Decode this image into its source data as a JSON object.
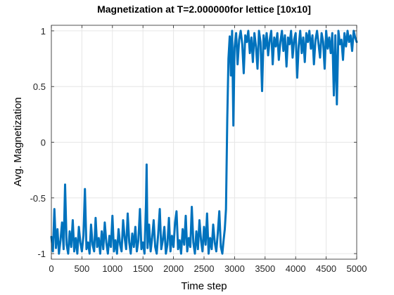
{
  "chart_data": {
    "type": "line",
    "title": "Magnetization at T=2.000000for lettice [10x10]",
    "xlabel": "Time step",
    "ylabel": "Avg. Magnetization",
    "xlim": [
      0,
      5000
    ],
    "ylim": [
      -1.05,
      1.05
    ],
    "xticks": [
      0,
      500,
      1000,
      1500,
      2000,
      2500,
      3000,
      3500,
      4000,
      4500,
      5000
    ],
    "xtick_labels": [
      "0",
      "500",
      "1000",
      "1500",
      "2000",
      "2500",
      "3000",
      "3500",
      "4000",
      "4500",
      "5000"
    ],
    "yticks": [
      -1,
      -0.5,
      0,
      0.5,
      1
    ],
    "ytick_labels": [
      "-1",
      "-0.5",
      "0",
      "0.5",
      "1"
    ],
    "grid": true,
    "series": [
      {
        "name": "Avg. Magnetization",
        "color": "#0072BD",
        "x": [
          0,
          25,
          50,
          75,
          100,
          125,
          150,
          175,
          200,
          225,
          250,
          275,
          300,
          325,
          350,
          375,
          400,
          425,
          450,
          475,
          500,
          525,
          550,
          575,
          600,
          625,
          650,
          675,
          700,
          725,
          750,
          775,
          800,
          825,
          850,
          875,
          900,
          925,
          950,
          975,
          1000,
          1025,
          1050,
          1075,
          1100,
          1125,
          1150,
          1175,
          1200,
          1225,
          1250,
          1275,
          1300,
          1325,
          1350,
          1375,
          1400,
          1425,
          1450,
          1475,
          1500,
          1525,
          1550,
          1560,
          1575,
          1600,
          1625,
          1650,
          1675,
          1700,
          1725,
          1750,
          1775,
          1800,
          1825,
          1850,
          1875,
          1900,
          1925,
          1950,
          1975,
          2000,
          2025,
          2050,
          2075,
          2100,
          2125,
          2150,
          2175,
          2200,
          2225,
          2250,
          2275,
          2300,
          2325,
          2350,
          2375,
          2400,
          2425,
          2450,
          2475,
          2500,
          2525,
          2550,
          2575,
          2600,
          2625,
          2650,
          2675,
          2700,
          2725,
          2750,
          2775,
          2800,
          2820,
          2840,
          2860,
          2880,
          2900,
          2920,
          2940,
          2960,
          2980,
          3000,
          3025,
          3050,
          3075,
          3100,
          3125,
          3150,
          3175,
          3200,
          3225,
          3250,
          3275,
          3300,
          3325,
          3350,
          3375,
          3400,
          3425,
          3450,
          3475,
          3500,
          3525,
          3550,
          3575,
          3600,
          3625,
          3650,
          3675,
          3700,
          3725,
          3750,
          3775,
          3800,
          3825,
          3850,
          3875,
          3900,
          3925,
          3950,
          3975,
          4000,
          4025,
          4050,
          4075,
          4100,
          4125,
          4150,
          4175,
          4200,
          4225,
          4250,
          4275,
          4300,
          4325,
          4350,
          4375,
          4400,
          4425,
          4450,
          4475,
          4500,
          4525,
          4550,
          4575,
          4600,
          4625,
          4650,
          4675,
          4700,
          4725,
          4750,
          4775,
          4800,
          4825,
          4850,
          4875,
          4900,
          4925,
          4950,
          4975,
          5000
        ],
        "y": [
          -0.85,
          -0.98,
          -0.6,
          -0.95,
          -0.78,
          -1.0,
          -0.88,
          -0.72,
          -0.96,
          -0.38,
          -0.92,
          -1.0,
          -0.8,
          -0.94,
          -0.7,
          -0.98,
          -0.86,
          -1.0,
          -0.76,
          -0.9,
          -0.98,
          -0.84,
          -0.42,
          -0.96,
          -0.9,
          -1.0,
          -0.74,
          -0.92,
          -0.98,
          -0.68,
          -0.94,
          -0.86,
          -1.0,
          -0.8,
          -0.96,
          -0.72,
          -0.9,
          -1.0,
          -0.84,
          -0.94,
          -0.66,
          -0.98,
          -0.88,
          -1.0,
          -0.78,
          -0.92,
          -0.98,
          -0.7,
          -0.86,
          -0.96,
          -0.64,
          -0.9,
          -1.0,
          -0.82,
          -0.94,
          -0.76,
          -0.98,
          -0.88,
          -0.6,
          -0.96,
          -0.9,
          -1.0,
          -0.55,
          -0.2,
          -0.95,
          -0.74,
          -0.98,
          -0.86,
          -0.7,
          -0.94,
          -1.0,
          -0.82,
          -0.6,
          -0.96,
          -0.88,
          -0.76,
          -1.0,
          -0.92,
          -0.68,
          -0.98,
          -0.84,
          -0.94,
          -0.72,
          -0.62,
          -0.96,
          -0.88,
          -1.0,
          -0.78,
          -0.92,
          -0.66,
          -0.98,
          -0.86,
          -0.94,
          -0.58,
          -0.9,
          -1.0,
          -0.8,
          -0.96,
          -0.7,
          -0.88,
          -0.98,
          -0.76,
          -0.92,
          -0.64,
          -1.0,
          -0.86,
          -0.96,
          -0.74,
          -0.9,
          -0.98,
          -0.82,
          -0.62,
          -0.94,
          -1.0,
          -0.88,
          -0.78,
          -0.6,
          0.2,
          0.75,
          0.95,
          0.6,
          1.0,
          0.15,
          0.85,
          0.98,
          0.7,
          0.92,
          1.0,
          0.88,
          0.62,
          0.96,
          0.9,
          1.0,
          0.8,
          0.94,
          0.72,
          0.98,
          0.86,
          0.66,
          1.0,
          0.9,
          0.46,
          0.96,
          0.84,
          0.98,
          0.78,
          0.92,
          1.0,
          0.7,
          0.94,
          0.86,
          0.98,
          0.74,
          0.9,
          1.0,
          0.82,
          0.96,
          0.68,
          0.94,
          0.88,
          1.0,
          0.76,
          0.92,
          0.98,
          0.58,
          0.86,
          1.0,
          0.8,
          0.94,
          0.72,
          0.98,
          0.9,
          1.0,
          0.84,
          0.96,
          0.7,
          0.92,
          1.0,
          0.88,
          0.76,
          0.98,
          0.9,
          0.66,
          1.0,
          0.84,
          0.94,
          0.8,
          0.98,
          0.42,
          0.96,
          0.34,
          1.0,
          0.88,
          0.92,
          0.74,
          0.98,
          0.86,
          1.0,
          0.9,
          0.96,
          0.82,
          1.0,
          0.94,
          0.9
        ]
      }
    ]
  }
}
